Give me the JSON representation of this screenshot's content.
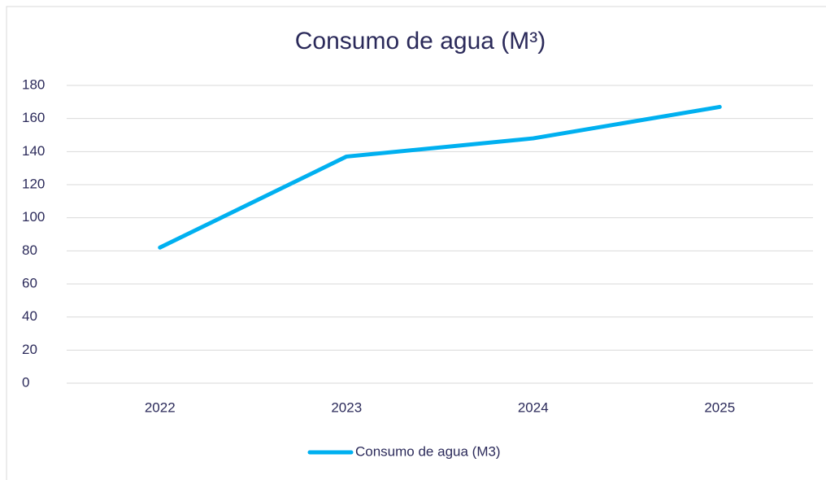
{
  "chart_data": {
    "type": "line",
    "title": "Consumo de agua (M³)",
    "categories": [
      "2022",
      "2023",
      "2024",
      "2025"
    ],
    "series": [
      {
        "name": "Consumo de agua (M3)",
        "color": "#00b0f0",
        "values": [
          82,
          137,
          148,
          167
        ]
      }
    ],
    "ylim": [
      0,
      180
    ],
    "yticks": [
      0,
      20,
      40,
      60,
      80,
      100,
      120,
      140,
      160,
      180
    ],
    "grid": true,
    "legend": "bottom"
  }
}
